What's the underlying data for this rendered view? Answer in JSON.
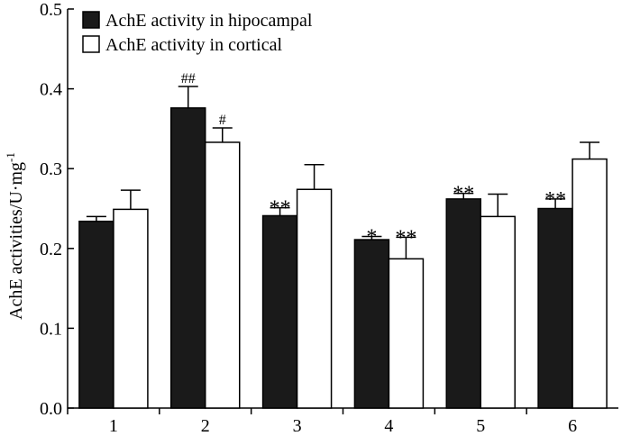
{
  "chart_data": {
    "type": "bar",
    "title": "",
    "xlabel": "",
    "ylabel": "AchE activities/U·mg",
    "ylabel_sup": "-1",
    "ylim": [
      0,
      0.5
    ],
    "yticks": [
      "0.0",
      "0.1",
      "0.2",
      "0.3",
      "0.4",
      "0.5"
    ],
    "categories": [
      "1",
      "2",
      "3",
      "4",
      "5",
      "6"
    ],
    "legend_position": "top-left",
    "series": [
      {
        "name": "AchE activity in hipocampal",
        "color": "#1a1a1a",
        "values": [
          0.234,
          0.376,
          0.241,
          0.211,
          0.262,
          0.25
        ],
        "errors": [
          0.006,
          0.027,
          0.01,
          0.004,
          0.007,
          0.012
        ],
        "annotations": [
          "",
          "##",
          "**",
          "*",
          "**",
          "**"
        ]
      },
      {
        "name": "AchE activity in cortical",
        "color": "#ffffff",
        "values": [
          0.249,
          0.333,
          0.274,
          0.187,
          0.24,
          0.312
        ],
        "errors": [
          0.024,
          0.018,
          0.031,
          0.027,
          0.028,
          0.021
        ],
        "annotations": [
          "",
          "#",
          "",
          "**",
          "",
          ""
        ]
      }
    ]
  }
}
